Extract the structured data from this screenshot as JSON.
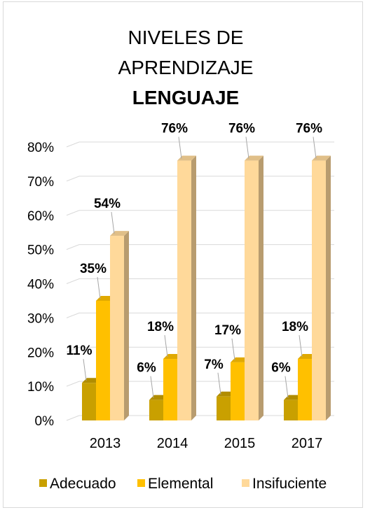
{
  "chart_data": {
    "type": "bar",
    "title_lines": [
      "NIVELES DE",
      "APRENDIZAJE"
    ],
    "title_bold": "LENGUAJE",
    "categories": [
      "2013",
      "2014",
      "2015",
      "2017"
    ],
    "series": [
      {
        "name": "Adecuado",
        "values": [
          11,
          6,
          7,
          6
        ],
        "labels": [
          "11%",
          "6%",
          "7%",
          "6%"
        ],
        "color": "#C9A000"
      },
      {
        "name": "Elemental",
        "values": [
          35,
          18,
          17,
          18
        ],
        "labels": [
          "35%",
          "18%",
          "17%",
          "18%"
        ],
        "color": "#FFC000"
      },
      {
        "name": "Insifuciente",
        "values": [
          54,
          76,
          76,
          76
        ],
        "labels": [
          "54%",
          "76%",
          "76%",
          "76%"
        ],
        "color": "#FFD99A"
      }
    ],
    "y_ticks": [
      "0%",
      "10%",
      "20%",
      "30%",
      "40%",
      "50%",
      "60%",
      "70%",
      "80%"
    ],
    "ylim": [
      0,
      80
    ],
    "grid": true,
    "legend": "bottom"
  }
}
